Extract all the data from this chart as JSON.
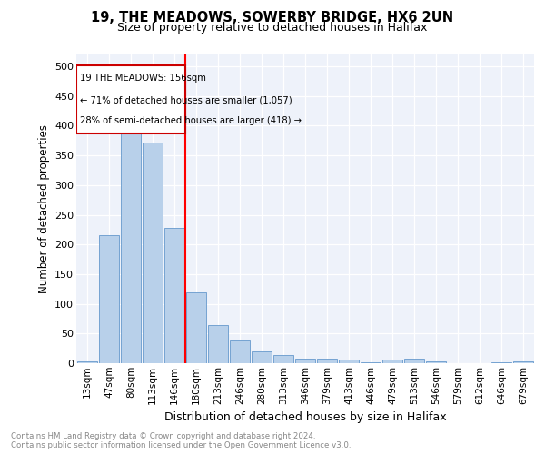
{
  "title1": "19, THE MEADOWS, SOWERBY BRIDGE, HX6 2UN",
  "title2": "Size of property relative to detached houses in Halifax",
  "xlabel": "Distribution of detached houses by size in Halifax",
  "ylabel": "Number of detached properties",
  "bar_labels": [
    "13sqm",
    "47sqm",
    "80sqm",
    "113sqm",
    "146sqm",
    "180sqm",
    "213sqm",
    "246sqm",
    "280sqm",
    "313sqm",
    "346sqm",
    "379sqm",
    "413sqm",
    "446sqm",
    "479sqm",
    "513sqm",
    "546sqm",
    "579sqm",
    "612sqm",
    "646sqm",
    "679sqm"
  ],
  "bar_values": [
    3,
    215,
    403,
    372,
    228,
    120,
    65,
    40,
    20,
    14,
    8,
    7,
    6,
    1,
    6,
    8,
    3,
    0,
    0,
    1,
    3
  ],
  "bar_color": "#b8d0ea",
  "bar_edge_color": "#6699cc",
  "property_line_x": 4.5,
  "annotation_text_line1": "19 THE MEADOWS: 156sqm",
  "annotation_text_line2": "← 71% of detached houses are smaller (1,057)",
  "annotation_text_line3": "28% of semi-detached houses are larger (418) →",
  "annotation_box_color": "#cc0000",
  "ylim": [
    0,
    520
  ],
  "yticks": [
    0,
    50,
    100,
    150,
    200,
    250,
    300,
    350,
    400,
    450,
    500
  ],
  "footer_line1": "Contains HM Land Registry data © Crown copyright and database right 2024.",
  "footer_line2": "Contains public sector information licensed under the Open Government Licence v3.0.",
  "bg_color": "#eef2fa"
}
